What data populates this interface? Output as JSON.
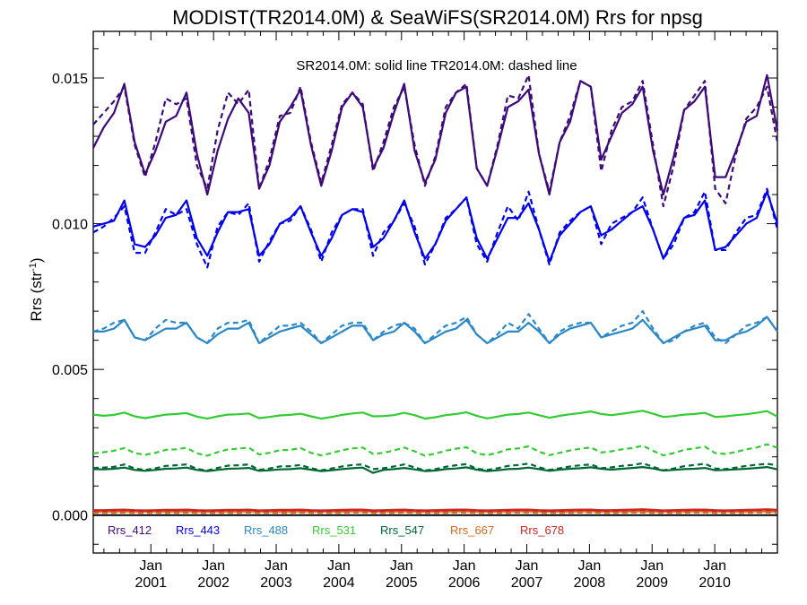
{
  "chart_data": {
    "type": "line",
    "title": "MODIST(TR2014.0M) & SeaWiFS(SR2014.0M)  Rrs for npsg",
    "ylabel": "Rrs (str",
    "ylabel_sup": "-1",
    "ylabel_close": ")",
    "annotation": "SR2014.0M: solid line   TR2014.0M: dashed line",
    "ylim": [
      -0.0013,
      0.0166
    ],
    "xlim": [
      2000.08,
      2011.0
    ],
    "y_ticks": [
      0.0,
      0.005,
      0.01,
      0.015
    ],
    "y_tick_labels": [
      "0.000",
      "0.005",
      "0.010",
      "0.015"
    ],
    "x_ticks": [
      2001,
      2002,
      2003,
      2004,
      2005,
      2006,
      2007,
      2008,
      2009,
      2010
    ],
    "x_tick_labels": [
      {
        "month": "Jan",
        "year": "2001"
      },
      {
        "month": "Jan",
        "year": "2002"
      },
      {
        "month": "Jan",
        "year": "2003"
      },
      {
        "month": "Jan",
        "year": "2004"
      },
      {
        "month": "Jan",
        "year": "2005"
      },
      {
        "month": "Jan",
        "year": "2006"
      },
      {
        "month": "Jan",
        "year": "2007"
      },
      {
        "month": "Jan",
        "year": "2008"
      },
      {
        "month": "Jan",
        "year": "2009"
      },
      {
        "month": "Jan",
        "year": "2010"
      }
    ],
    "zero_line": 0.0,
    "series": [
      {
        "name": "Rrs_412",
        "color": "#3d0a7a",
        "solid": [
          0.0126,
          0.0133,
          0.0138,
          0.0148,
          0.0128,
          0.0117,
          0.0125,
          0.0135,
          0.0137,
          0.0145,
          0.0124,
          0.011,
          0.0125,
          0.0136,
          0.0143,
          0.0138,
          0.0112,
          0.012,
          0.0135,
          0.014,
          0.0146,
          0.0127,
          0.0113,
          0.0125,
          0.014,
          0.0145,
          0.014,
          0.0119,
          0.0126,
          0.0138,
          0.0148,
          0.0125,
          0.0114,
          0.0122,
          0.0138,
          0.0145,
          0.0147,
          0.0119,
          0.0113,
          0.0126,
          0.014,
          0.0142,
          0.0146,
          0.0124,
          0.011,
          0.0128,
          0.0135,
          0.0149,
          0.0147,
          0.0122,
          0.013,
          0.0138,
          0.0141,
          0.0147,
          0.0125,
          0.011,
          0.0123,
          0.0139,
          0.0142,
          0.0147,
          0.0116,
          0.0116,
          0.0125,
          0.0135,
          0.0137,
          0.0151,
          0.0132
        ],
        "dashed": [
          0.0134,
          0.0138,
          0.0142,
          0.0147,
          0.0127,
          0.0116,
          0.0128,
          0.0143,
          0.0141,
          0.0143,
          0.012,
          0.0112,
          0.0132,
          0.0145,
          0.0141,
          0.0146,
          0.0112,
          0.0122,
          0.0137,
          0.0138,
          0.0147,
          0.0128,
          0.0114,
          0.0127,
          0.0141,
          0.0145,
          0.0141,
          0.0118,
          0.0128,
          0.014,
          0.0147,
          0.0127,
          0.0113,
          0.0123,
          0.014,
          0.0145,
          0.0148,
          0.0119,
          0.0113,
          0.0127,
          0.0144,
          0.0143,
          0.0151,
          0.0124,
          0.0111,
          0.0128,
          0.0137,
          0.0149,
          0.0147,
          0.0118,
          0.0132,
          0.014,
          0.0142,
          0.0149,
          0.0127,
          0.0106,
          0.012,
          0.0139,
          0.0144,
          0.0149,
          0.0112,
          0.0107,
          0.0124,
          0.0136,
          0.014,
          0.0147,
          0.0128
        ]
      },
      {
        "name": "Rrs_443",
        "color": "#0000ee",
        "solid": [
          0.0099,
          0.01,
          0.0101,
          0.0108,
          0.0093,
          0.0092,
          0.0096,
          0.0102,
          0.0103,
          0.0108,
          0.0095,
          0.0089,
          0.0097,
          0.0104,
          0.0104,
          0.0105,
          0.0089,
          0.0093,
          0.01,
          0.0102,
          0.0106,
          0.0097,
          0.0089,
          0.0095,
          0.0103,
          0.0105,
          0.0104,
          0.0092,
          0.0095,
          0.0101,
          0.0108,
          0.0097,
          0.0088,
          0.0093,
          0.0101,
          0.0105,
          0.0109,
          0.0095,
          0.0088,
          0.0095,
          0.0102,
          0.0102,
          0.0107,
          0.0098,
          0.0087,
          0.0096,
          0.01,
          0.0104,
          0.0106,
          0.0096,
          0.0098,
          0.0101,
          0.0104,
          0.0106,
          0.0098,
          0.0088,
          0.0095,
          0.0102,
          0.0103,
          0.0108,
          0.0091,
          0.0092,
          0.0096,
          0.01,
          0.0102,
          0.0111,
          0.01
        ],
        "dashed": [
          0.0097,
          0.0099,
          0.0102,
          0.0106,
          0.009,
          0.009,
          0.0097,
          0.0105,
          0.0103,
          0.0105,
          0.0093,
          0.0085,
          0.0099,
          0.0104,
          0.0103,
          0.0107,
          0.0087,
          0.0094,
          0.01,
          0.0101,
          0.0106,
          0.0098,
          0.0087,
          0.0097,
          0.0103,
          0.0105,
          0.0105,
          0.0089,
          0.0097,
          0.0101,
          0.0107,
          0.0099,
          0.0086,
          0.0093,
          0.0102,
          0.0105,
          0.0109,
          0.0093,
          0.0087,
          0.0097,
          0.0106,
          0.0101,
          0.0111,
          0.0098,
          0.0086,
          0.0097,
          0.0101,
          0.0104,
          0.0106,
          0.0093,
          0.01,
          0.0102,
          0.0104,
          0.0109,
          0.0098,
          0.0088,
          0.0093,
          0.0102,
          0.0104,
          0.0111,
          0.0091,
          0.0091,
          0.0097,
          0.0102,
          0.0103,
          0.0112,
          0.0098
        ]
      },
      {
        "name": "Rrs_488",
        "color": "#2a88c8",
        "solid": [
          0.0063,
          0.0063,
          0.0064,
          0.0067,
          0.0061,
          0.006,
          0.0062,
          0.0064,
          0.0064,
          0.0066,
          0.0061,
          0.0059,
          0.0062,
          0.0064,
          0.0064,
          0.0066,
          0.0059,
          0.0061,
          0.0063,
          0.0064,
          0.0065,
          0.0062,
          0.0059,
          0.0061,
          0.0063,
          0.0065,
          0.0065,
          0.006,
          0.0062,
          0.0063,
          0.0066,
          0.0063,
          0.0059,
          0.0061,
          0.0063,
          0.0064,
          0.0067,
          0.0062,
          0.0059,
          0.0061,
          0.0063,
          0.0063,
          0.0066,
          0.0063,
          0.0059,
          0.0062,
          0.0064,
          0.0065,
          0.0066,
          0.0061,
          0.0062,
          0.0063,
          0.0064,
          0.0067,
          0.0063,
          0.0059,
          0.0061,
          0.0063,
          0.0064,
          0.0065,
          0.006,
          0.006,
          0.0062,
          0.0063,
          0.0065,
          0.0068,
          0.0063
        ],
        "dashed": [
          0.0063,
          0.0064,
          0.0066,
          0.0067,
          0.0061,
          0.006,
          0.0064,
          0.0067,
          0.0066,
          0.0066,
          0.0061,
          0.0059,
          0.0064,
          0.0066,
          0.0066,
          0.0067,
          0.0059,
          0.0062,
          0.0065,
          0.0065,
          0.0066,
          0.0063,
          0.0059,
          0.0062,
          0.0065,
          0.0066,
          0.0066,
          0.006,
          0.0063,
          0.0065,
          0.0066,
          0.0064,
          0.0059,
          0.0062,
          0.0065,
          0.0066,
          0.0068,
          0.0062,
          0.0059,
          0.0062,
          0.0066,
          0.0064,
          0.0069,
          0.0064,
          0.0059,
          0.0063,
          0.0065,
          0.0066,
          0.0066,
          0.0061,
          0.0063,
          0.0065,
          0.0066,
          0.007,
          0.0064,
          0.0059,
          0.006,
          0.0063,
          0.0065,
          0.0066,
          0.0061,
          0.0059,
          0.0062,
          0.0065,
          0.0066,
          0.0068,
          0.0063
        ]
      },
      {
        "name": "Rrs_531",
        "color": "#33cc33",
        "solid": [
          0.00345,
          0.00341,
          0.00344,
          0.00352,
          0.00339,
          0.00333,
          0.00339,
          0.00345,
          0.00347,
          0.0035,
          0.00338,
          0.00331,
          0.00339,
          0.00345,
          0.00346,
          0.00349,
          0.00333,
          0.00337,
          0.00342,
          0.00344,
          0.00348,
          0.00339,
          0.00331,
          0.00337,
          0.00344,
          0.00349,
          0.00352,
          0.00339,
          0.0034,
          0.00343,
          0.00351,
          0.00343,
          0.00331,
          0.00336,
          0.00343,
          0.00347,
          0.00353,
          0.00341,
          0.00332,
          0.00338,
          0.00345,
          0.00347,
          0.00352,
          0.00343,
          0.00334,
          0.00341,
          0.00346,
          0.0035,
          0.00356,
          0.00347,
          0.00343,
          0.00348,
          0.00353,
          0.00358,
          0.00348,
          0.00337,
          0.0034,
          0.00345,
          0.00347,
          0.00351,
          0.00337,
          0.00339,
          0.00343,
          0.00346,
          0.00351,
          0.00357,
          0.00338
        ],
        "dashed": [
          0.00212,
          0.00216,
          0.00221,
          0.0023,
          0.00213,
          0.00207,
          0.00214,
          0.00224,
          0.00226,
          0.00231,
          0.00212,
          0.00204,
          0.00216,
          0.00226,
          0.00228,
          0.00232,
          0.00208,
          0.00214,
          0.00223,
          0.00224,
          0.0023,
          0.00214,
          0.00205,
          0.00213,
          0.00223,
          0.00229,
          0.00232,
          0.0021,
          0.00214,
          0.00222,
          0.00232,
          0.00219,
          0.00204,
          0.00211,
          0.00221,
          0.00228,
          0.00233,
          0.00212,
          0.00206,
          0.00214,
          0.00226,
          0.00229,
          0.00236,
          0.00218,
          0.00206,
          0.00214,
          0.00222,
          0.00228,
          0.00232,
          0.00215,
          0.00219,
          0.00226,
          0.0023,
          0.00238,
          0.00221,
          0.00205,
          0.00213,
          0.00224,
          0.00229,
          0.00235,
          0.00213,
          0.0021,
          0.00217,
          0.00226,
          0.00232,
          0.00243,
          0.00231
        ]
      },
      {
        "name": "Rrs_547",
        "color": "#006633",
        "solid": [
          0.00158,
          0.00157,
          0.00159,
          0.00163,
          0.00155,
          0.00152,
          0.00155,
          0.00159,
          0.0016,
          0.00163,
          0.00155,
          0.00151,
          0.00155,
          0.00159,
          0.0016,
          0.00162,
          0.00152,
          0.00154,
          0.00157,
          0.00158,
          0.00161,
          0.00156,
          0.00151,
          0.00154,
          0.00158,
          0.00161,
          0.00163,
          0.00145,
          0.00155,
          0.00158,
          0.00162,
          0.00157,
          0.00151,
          0.00153,
          0.00158,
          0.0016,
          0.00164,
          0.00156,
          0.00151,
          0.00154,
          0.00158,
          0.00159,
          0.00163,
          0.00158,
          0.00152,
          0.00156,
          0.00159,
          0.00161,
          0.00164,
          0.00159,
          0.00156,
          0.00159,
          0.00162,
          0.00165,
          0.0016,
          0.00153,
          0.00155,
          0.00158,
          0.00159,
          0.00162,
          0.00154,
          0.00155,
          0.00157,
          0.00159,
          0.00162,
          0.00165,
          0.00157
        ],
        "dashed": [
          0.00162,
          0.00163,
          0.00166,
          0.00174,
          0.0016,
          0.00155,
          0.00161,
          0.00169,
          0.00171,
          0.00174,
          0.00159,
          0.00153,
          0.00162,
          0.0017,
          0.00171,
          0.00174,
          0.00155,
          0.0016,
          0.00167,
          0.00168,
          0.00172,
          0.00161,
          0.00154,
          0.0016,
          0.00167,
          0.00172,
          0.00174,
          0.00158,
          0.00161,
          0.00167,
          0.00174,
          0.00164,
          0.00153,
          0.00158,
          0.00166,
          0.00171,
          0.00175,
          0.00159,
          0.00155,
          0.00161,
          0.00169,
          0.00172,
          0.00177,
          0.00164,
          0.00155,
          0.00161,
          0.00167,
          0.00171,
          0.00174,
          0.00161,
          0.00164,
          0.00169,
          0.00172,
          0.00178,
          0.00166,
          0.00154,
          0.0016,
          0.00168,
          0.00172,
          0.00176,
          0.0016,
          0.00158,
          0.00163,
          0.00169,
          0.00173,
          0.00176,
          0.00171
        ]
      },
      {
        "name": "Rrs_667",
        "color": "#d2691e",
        "solid": [
          0.00012,
          0.00012,
          0.00012,
          0.00013,
          0.00012,
          0.00012,
          0.00012,
          0.00012,
          0.00012,
          0.00013,
          0.00012,
          0.00012,
          0.00012,
          0.00012,
          0.00012,
          0.00013,
          0.00012,
          0.00012,
          0.00012,
          0.00012,
          0.00013,
          0.00012,
          0.00012,
          0.00012,
          0.00012,
          0.00013,
          0.00013,
          0.00012,
          0.00012,
          0.00012,
          0.00013,
          0.00012,
          0.00012,
          0.00012,
          0.00012,
          0.00013,
          0.00013,
          0.00012,
          0.00012,
          0.00012,
          0.00012,
          0.00013,
          0.00013,
          0.00012,
          0.00012,
          0.00012,
          0.00012,
          0.00013,
          0.00013,
          0.00012,
          0.00012,
          0.00012,
          0.00013,
          0.00013,
          0.00012,
          0.00012,
          0.00012,
          0.00012,
          0.00013,
          0.00013,
          0.00012,
          0.00012,
          0.00012,
          0.00012,
          0.00013,
          0.00013,
          0.00012
        ],
        "dashed": [
          8e-05,
          8e-05,
          8e-05,
          9e-05,
          8e-05,
          8e-05,
          8e-05,
          8e-05,
          8e-05,
          9e-05,
          8e-05,
          8e-05,
          8e-05,
          8e-05,
          8e-05,
          9e-05,
          8e-05,
          8e-05,
          8e-05,
          8e-05,
          9e-05,
          8e-05,
          8e-05,
          8e-05,
          8e-05,
          9e-05,
          9e-05,
          8e-05,
          8e-05,
          8e-05,
          9e-05,
          8e-05,
          8e-05,
          8e-05,
          8e-05,
          9e-05,
          9e-05,
          8e-05,
          8e-05,
          8e-05,
          8e-05,
          9e-05,
          9e-05,
          8e-05,
          8e-05,
          8e-05,
          8e-05,
          9e-05,
          9e-05,
          8e-05,
          8e-05,
          8e-05,
          9e-05,
          9e-05,
          8e-05,
          8e-05,
          8e-05,
          8e-05,
          9e-05,
          9e-05,
          8e-05,
          8e-05,
          8e-05,
          8e-05,
          9e-05,
          9e-05,
          8e-05
        ]
      },
      {
        "name": "Rrs_678",
        "color": "#cc2222",
        "solid": [
          0.00017,
          0.00017,
          0.00018,
          0.00019,
          0.00017,
          0.00016,
          0.00017,
          0.00018,
          0.00018,
          0.00019,
          0.00017,
          0.00016,
          0.00017,
          0.00018,
          0.00018,
          0.00019,
          0.00016,
          0.00017,
          0.00018,
          0.00018,
          0.00019,
          0.00017,
          0.00016,
          0.00017,
          0.00018,
          0.00019,
          0.00019,
          0.00016,
          0.00017,
          0.00018,
          0.00019,
          0.00017,
          0.00016,
          0.00017,
          0.00018,
          0.00019,
          0.00019,
          0.00017,
          0.00016,
          0.00017,
          0.00018,
          0.00019,
          0.00019,
          0.00017,
          0.00016,
          0.00017,
          0.00018,
          0.00019,
          0.00019,
          0.00017,
          0.00017,
          0.00018,
          0.00019,
          0.0002,
          0.00018,
          0.00016,
          0.00017,
          0.00018,
          0.00019,
          0.00019,
          0.00017,
          0.00016,
          0.00017,
          0.00018,
          0.00019,
          0.0002,
          0.00018
        ],
        "dashed": [
          0.00015,
          0.00015,
          0.00016,
          0.00017,
          0.00015,
          0.00014,
          0.00015,
          0.00016,
          0.00016,
          0.00017,
          0.00015,
          0.00014,
          0.00015,
          0.00016,
          0.00016,
          0.00017,
          0.00014,
          0.00015,
          0.00016,
          0.00016,
          0.00017,
          0.00015,
          0.00014,
          0.00015,
          0.00016,
          0.00017,
          0.00017,
          0.00014,
          0.00015,
          0.00016,
          0.00017,
          0.00015,
          0.00014,
          0.00015,
          0.00016,
          0.00017,
          0.00017,
          0.00015,
          0.00014,
          0.00015,
          0.00016,
          0.00017,
          0.00017,
          0.00015,
          0.00014,
          0.00015,
          0.00016,
          0.00017,
          0.00017,
          0.00015,
          0.00015,
          0.00016,
          0.00017,
          0.00018,
          0.00016,
          0.00014,
          0.00015,
          0.00016,
          0.00017,
          0.00017,
          0.00015,
          0.00014,
          0.00015,
          0.00016,
          0.00017,
          0.00018,
          0.00016
        ]
      }
    ]
  }
}
